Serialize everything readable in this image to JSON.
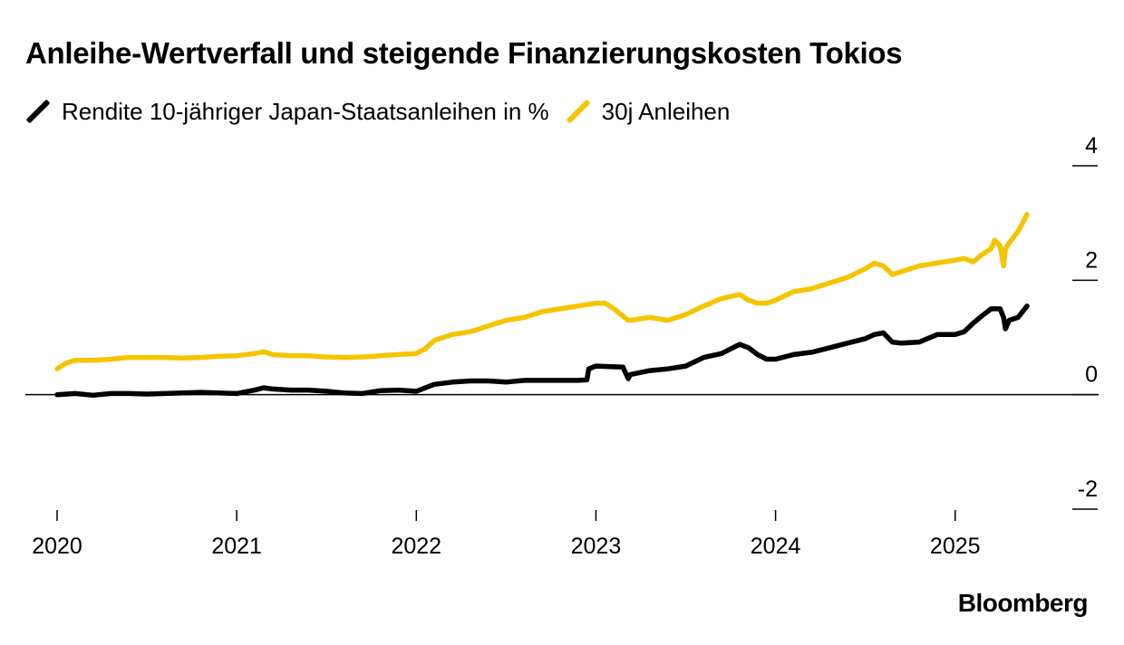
{
  "chart_data": {
    "type": "line",
    "title": "Anleihe-Wertverfall und steigende Finanzierungskosten Tokios",
    "xlabel": "",
    "ylabel": "",
    "y_ticks": [
      "4",
      "2",
      "0",
      "-2"
    ],
    "ylim": [
      -2,
      4
    ],
    "x_ticks": [
      "2020",
      "2021",
      "2022",
      "2023",
      "2024",
      "2025"
    ],
    "x_tick_values": [
      2020.0,
      2021.0,
      2022.0,
      2023.0,
      2024.0,
      2025.0
    ],
    "xlim": [
      2019.85,
      2025.55
    ],
    "zero_line": true,
    "grid": false,
    "legend_position": "top-left",
    "series": [
      {
        "name": "Rendite 10-jähriger Japan-Staatsanleihen in %",
        "color": "#000000",
        "x": [
          2020.0,
          2020.1,
          2020.2,
          2020.3,
          2020.4,
          2020.5,
          2020.6,
          2020.7,
          2020.8,
          2020.9,
          2021.0,
          2021.1,
          2021.15,
          2021.2,
          2021.3,
          2021.4,
          2021.5,
          2021.6,
          2021.7,
          2021.8,
          2021.9,
          2022.0,
          2022.05,
          2022.1,
          2022.2,
          2022.3,
          2022.4,
          2022.5,
          2022.6,
          2022.7,
          2022.8,
          2022.9,
          2022.95,
          2022.96,
          2023.0,
          2023.15,
          2023.18,
          2023.19,
          2023.3,
          2023.4,
          2023.5,
          2023.6,
          2023.7,
          2023.8,
          2023.85,
          2023.9,
          2023.95,
          2024.0,
          2024.1,
          2024.2,
          2024.3,
          2024.4,
          2024.5,
          2024.55,
          2024.6,
          2024.65,
          2024.7,
          2024.8,
          2024.9,
          2025.0,
          2025.05,
          2025.1,
          2025.15,
          2025.2,
          2025.25,
          2025.27,
          2025.28,
          2025.3,
          2025.35,
          2025.4
        ],
        "values": [
          0.0,
          0.02,
          -0.01,
          0.02,
          0.02,
          0.01,
          0.02,
          0.03,
          0.04,
          0.03,
          0.02,
          0.08,
          0.12,
          0.1,
          0.08,
          0.08,
          0.06,
          0.03,
          0.02,
          0.07,
          0.08,
          0.06,
          0.12,
          0.18,
          0.22,
          0.24,
          0.24,
          0.22,
          0.25,
          0.25,
          0.25,
          0.25,
          0.26,
          0.45,
          0.5,
          0.48,
          0.28,
          0.35,
          0.42,
          0.45,
          0.5,
          0.65,
          0.72,
          0.88,
          0.82,
          0.7,
          0.62,
          0.62,
          0.7,
          0.74,
          0.82,
          0.9,
          0.98,
          1.05,
          1.08,
          0.92,
          0.9,
          0.92,
          1.05,
          1.05,
          1.1,
          1.25,
          1.38,
          1.5,
          1.5,
          1.35,
          1.15,
          1.3,
          1.35,
          1.55
        ]
      },
      {
        "name": "30j Anleihen",
        "color": "#f5c400",
        "x": [
          2020.0,
          2020.05,
          2020.1,
          2020.2,
          2020.3,
          2020.4,
          2020.5,
          2020.6,
          2020.7,
          2020.8,
          2020.9,
          2021.0,
          2021.1,
          2021.15,
          2021.2,
          2021.3,
          2021.4,
          2021.5,
          2021.6,
          2021.7,
          2021.8,
          2021.9,
          2022.0,
          2022.05,
          2022.1,
          2022.2,
          2022.3,
          2022.4,
          2022.5,
          2022.6,
          2022.7,
          2022.8,
          2022.9,
          2023.0,
          2023.05,
          2023.1,
          2023.18,
          2023.19,
          2023.3,
          2023.4,
          2023.5,
          2023.6,
          2023.7,
          2023.8,
          2023.85,
          2023.9,
          2023.95,
          2024.0,
          2024.1,
          2024.2,
          2024.3,
          2024.4,
          2024.5,
          2024.55,
          2024.6,
          2024.65,
          2024.7,
          2024.8,
          2024.9,
          2025.0,
          2025.05,
          2025.1,
          2025.15,
          2025.2,
          2025.22,
          2025.25,
          2025.27,
          2025.28,
          2025.3,
          2025.35,
          2025.4
        ],
        "values": [
          0.45,
          0.55,
          0.6,
          0.6,
          0.62,
          0.65,
          0.65,
          0.65,
          0.64,
          0.65,
          0.67,
          0.68,
          0.72,
          0.75,
          0.7,
          0.68,
          0.68,
          0.66,
          0.65,
          0.66,
          0.68,
          0.7,
          0.72,
          0.8,
          0.95,
          1.05,
          1.1,
          1.2,
          1.3,
          1.35,
          1.45,
          1.5,
          1.55,
          1.6,
          1.6,
          1.5,
          1.3,
          1.3,
          1.35,
          1.3,
          1.4,
          1.55,
          1.68,
          1.75,
          1.65,
          1.6,
          1.6,
          1.65,
          1.8,
          1.85,
          1.95,
          2.05,
          2.2,
          2.3,
          2.25,
          2.1,
          2.15,
          2.25,
          2.3,
          2.35,
          2.38,
          2.32,
          2.45,
          2.55,
          2.7,
          2.6,
          2.25,
          2.55,
          2.65,
          2.85,
          3.15
        ]
      }
    ]
  },
  "source": "Bloomberg"
}
